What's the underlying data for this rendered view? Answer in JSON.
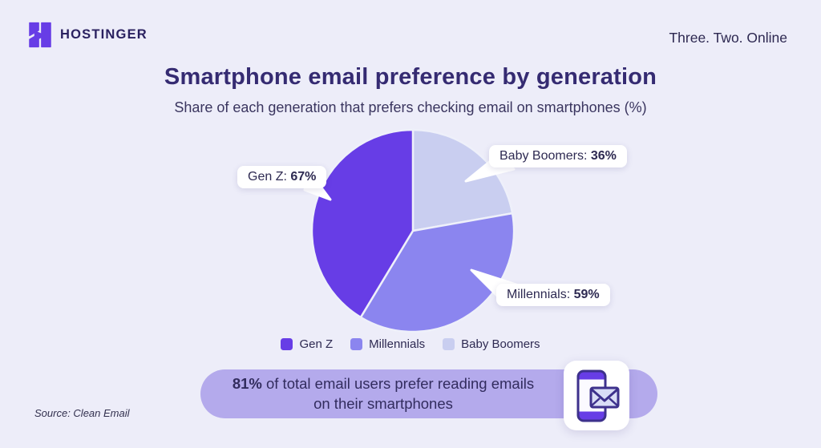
{
  "header": {
    "brand": "HOSTINGER",
    "tagline": "Three. Two. Online"
  },
  "title": "Smartphone email preference by generation",
  "subtitle": "Share of each generation that prefers checking email on smartphones (%)",
  "chart_data": {
    "type": "pie",
    "title": "Smartphone email preference by generation",
    "units": "%",
    "start_angle_deg": 0,
    "direction": "clockwise",
    "order_note": "slices drawn clockwise from 12 o'clock; arc size proportional to value (value total = 162)",
    "slices": [
      {
        "label": "Baby Boomers",
        "value": 36,
        "color": "#c9cef0"
      },
      {
        "label": "Millennials",
        "value": 59,
        "color": "#8b85ef"
      },
      {
        "label": "Gen Z",
        "value": 67,
        "color": "#673de6"
      }
    ]
  },
  "callouts": {
    "gen_z": {
      "text": "Gen Z: ",
      "value": "67%"
    },
    "baby_boomers": {
      "text": "Baby Boomers: ",
      "value": "36%"
    },
    "millennials": {
      "text": "Millennials: ",
      "value": "59%"
    }
  },
  "legend": [
    {
      "label": "Gen Z",
      "color": "#673de6"
    },
    {
      "label": "Millennials",
      "color": "#8b85ef"
    },
    {
      "label": "Baby Boomers",
      "color": "#c9cef0"
    }
  ],
  "banner": {
    "stat": "81%",
    "line1_rest": " of total email users prefer reading emails",
    "line2": "on their smartphones",
    "icon": "smartphone-email-icon"
  },
  "source": "Source: Clean Email",
  "colors": {
    "background": "#ededf9",
    "title_text": "#352b72",
    "body_text": "#322c5e",
    "banner_pill": "#b4aaec",
    "brand_purple": "#673de6",
    "slice_gap_stroke": "#eef0fa"
  }
}
